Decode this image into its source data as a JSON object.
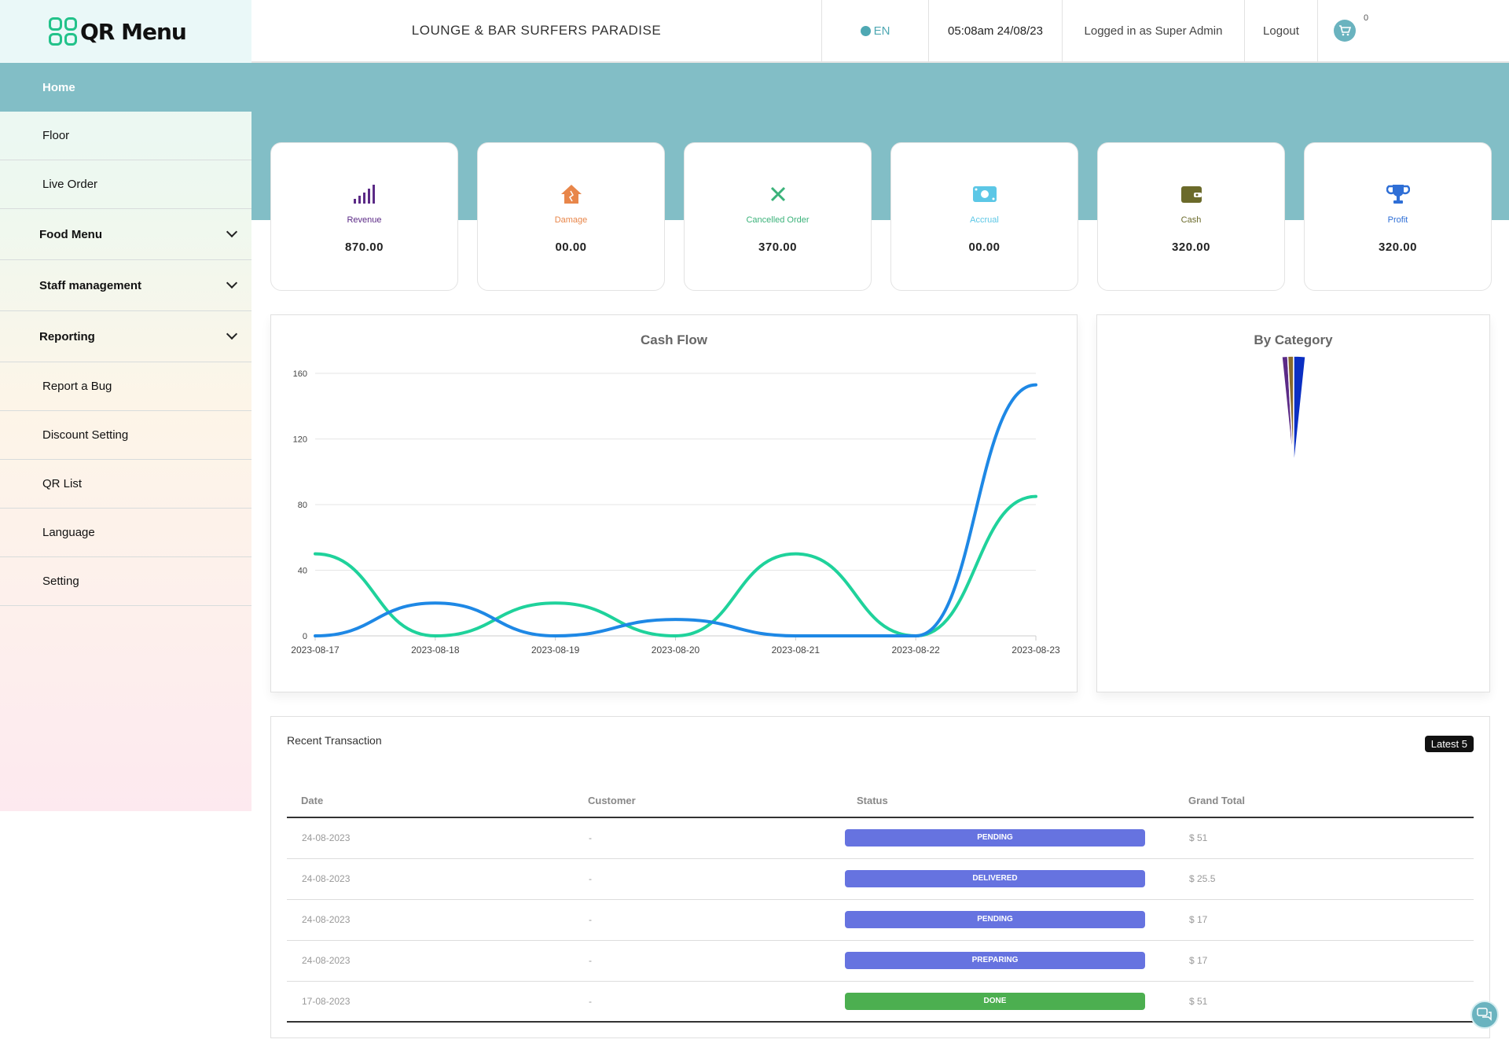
{
  "brand": {
    "name": "QR Menu",
    "accent": "#22c28a"
  },
  "sidebar": {
    "items": [
      {
        "label": "Home",
        "active": true,
        "expandable": false
      },
      {
        "label": "Floor",
        "expandable": false
      },
      {
        "label": "Live Order",
        "expandable": false
      },
      {
        "label": "Food Menu",
        "expandable": true
      },
      {
        "label": "Staff management",
        "expandable": true
      },
      {
        "label": "Reporting",
        "expandable": true
      },
      {
        "label": "Report a Bug",
        "expandable": false
      },
      {
        "label": "Discount Setting",
        "expandable": false
      },
      {
        "label": "QR List",
        "expandable": false
      },
      {
        "label": "Language",
        "expandable": false
      },
      {
        "label": "Setting",
        "expandable": false
      }
    ]
  },
  "header": {
    "title": "LOUNGE & BAR SURFERS PARADISE",
    "language": "EN",
    "datetime": "05:08am 24/08/23",
    "user": "Logged in as Super Admin",
    "logout": "Logout",
    "cart_count": "0"
  },
  "stats": [
    {
      "label": "Revenue",
      "value": "870.00",
      "color": "#5b2a86",
      "icon": "signal-bars-icon"
    },
    {
      "label": "Damage",
      "value": "00.00",
      "color": "#e8864a",
      "icon": "house-damage-icon"
    },
    {
      "label": "Cancelled Order",
      "value": "370.00",
      "color": "#3bb27a",
      "icon": "close-icon"
    },
    {
      "label": "Accrual",
      "value": "00.00",
      "color": "#5cc7e6",
      "icon": "money-bill-icon"
    },
    {
      "label": "Cash",
      "value": "320.00",
      "color": "#6b6a2a",
      "icon": "wallet-icon"
    },
    {
      "label": "Profit",
      "value": "320.00",
      "color": "#2f6fd6",
      "icon": "trophy-icon"
    }
  ],
  "chart_data": [
    {
      "type": "line",
      "title": "Cash Flow",
      "categories": [
        "2023-08-17",
        "2023-08-18",
        "2023-08-19",
        "2023-08-20",
        "2023-08-21",
        "2023-08-22",
        "2023-08-23"
      ],
      "series": [
        {
          "values": [
            50,
            0,
            20,
            0,
            50,
            0,
            85
          ],
          "color": "#1fd29b"
        },
        {
          "values": [
            0,
            20,
            0,
            10,
            0,
            0,
            153
          ],
          "color": "#1e88e5"
        }
      ],
      "ylim": [
        0,
        160
      ],
      "yticks": [
        "0",
        "40",
        "80",
        "120",
        "160"
      ],
      "grid": true
    },
    {
      "type": "pie",
      "title": "By Category",
      "slices": [
        {
          "value": 1.5,
          "color": "#5b2a86"
        },
        {
          "value": 1.5,
          "color": "#8a6a2a"
        },
        {
          "value": 3,
          "color": "#0b2fc2"
        }
      ]
    }
  ],
  "transactions": {
    "title": "Recent Transaction",
    "badge": "Latest 5",
    "columns": [
      "Date",
      "Customer",
      "Status",
      "Grand Total"
    ],
    "rows": [
      {
        "date": "24-08-2023",
        "customer": "-",
        "status": "PENDING",
        "status_color": "#6673e0",
        "total": "$ 51"
      },
      {
        "date": "24-08-2023",
        "customer": "-",
        "status": "DELIVERED",
        "status_color": "#6673e0",
        "total": "$ 25.5"
      },
      {
        "date": "24-08-2023",
        "customer": "-",
        "status": "PENDING",
        "status_color": "#6673e0",
        "total": "$ 17"
      },
      {
        "date": "24-08-2023",
        "customer": "-",
        "status": "PREPARING",
        "status_color": "#6673e0",
        "total": "$ 17"
      },
      {
        "date": "17-08-2023",
        "customer": "-",
        "status": "DONE",
        "status_color": "#4caf50",
        "total": "$ 51"
      }
    ]
  }
}
